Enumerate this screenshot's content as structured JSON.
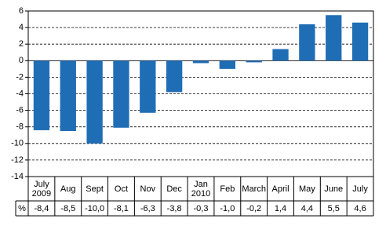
{
  "chart_data": {
    "type": "bar",
    "categories": [
      "July 2009",
      "Aug",
      "Sept",
      "Oct",
      "Nov",
      "Dec",
      "Jan 2010",
      "Feb",
      "March",
      "April",
      "May",
      "June",
      "July"
    ],
    "values": [
      -8.4,
      -8.5,
      -10.0,
      -8.1,
      -6.3,
      -3.8,
      -0.3,
      -1.0,
      -0.2,
      1.4,
      4.4,
      5.5,
      4.6
    ],
    "value_labels": [
      "-8,4",
      "-8,5",
      "-10,0",
      "-8,1",
      "-6,3",
      "-3,8",
      "-0,3",
      "-1,0",
      "-0,2",
      "1,4",
      "4,4",
      "5,5",
      "4,6"
    ],
    "data_table_label": "%",
    "color": "#1f6db5",
    "ylim": [
      -14,
      6
    ],
    "yticks": [
      -14,
      -12,
      -10,
      -8,
      -6,
      -4,
      -2,
      0,
      2,
      4,
      6
    ],
    "grid": true
  }
}
